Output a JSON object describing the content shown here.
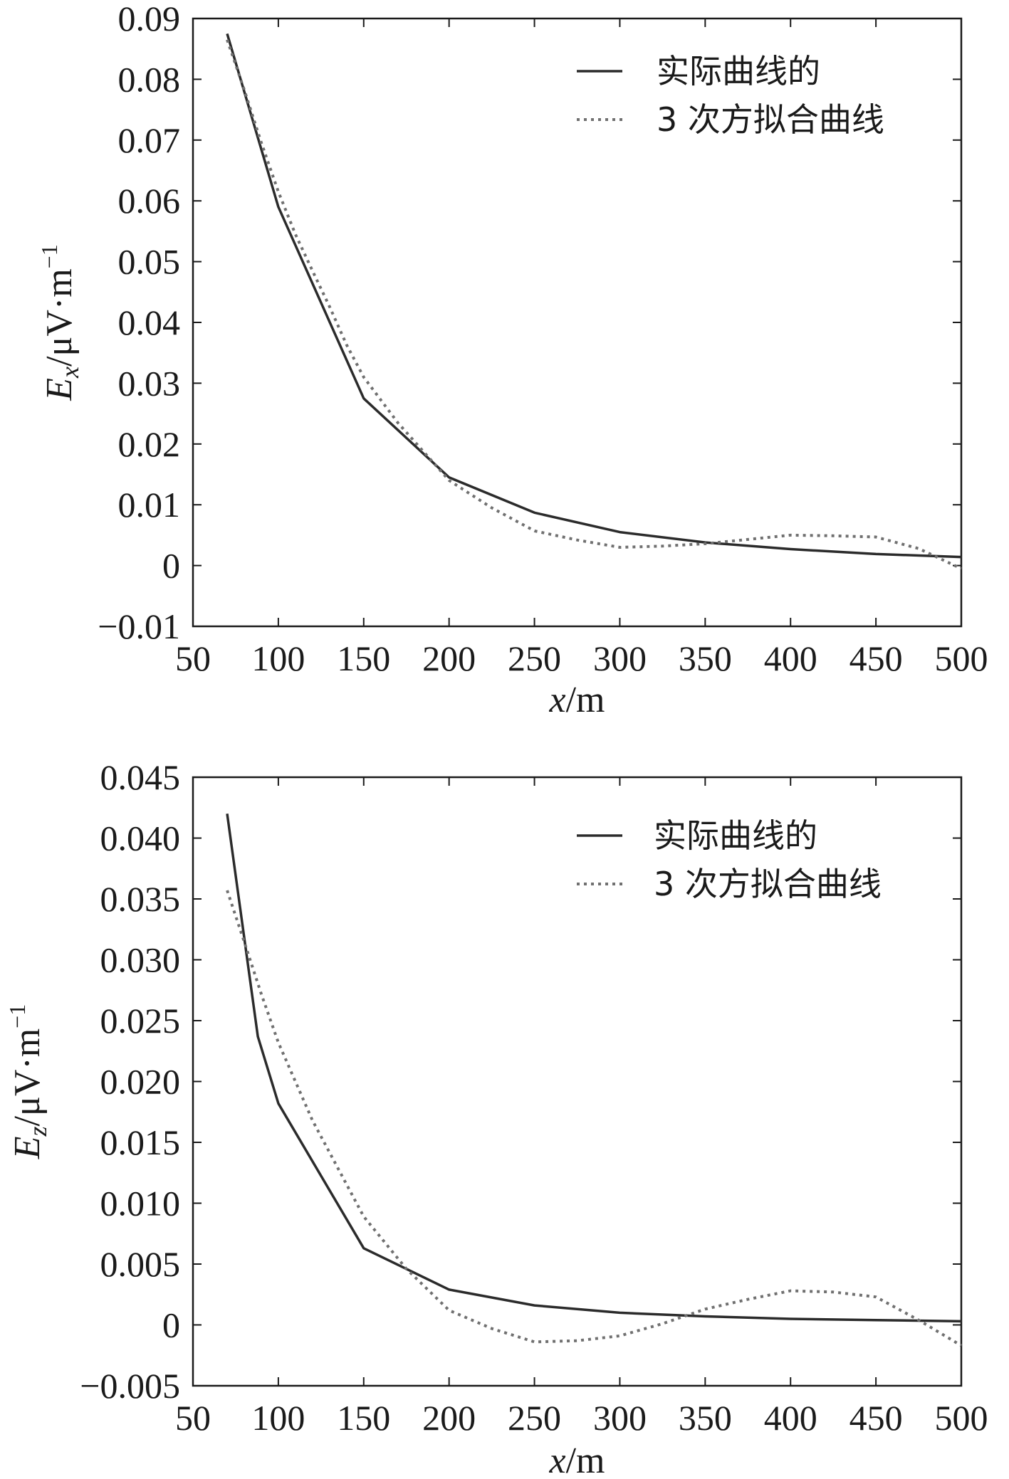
{
  "chart_data": [
    {
      "type": "line",
      "xlabel": {
        "var": "x",
        "unit": "/m"
      },
      "ylabel": {
        "var": "E",
        "sub": "x",
        "unit": "/μV·m",
        "sup": "−1"
      },
      "xlim": [
        50,
        500
      ],
      "ylim": [
        -0.01,
        0.09
      ],
      "xticks": [
        50,
        100,
        150,
        200,
        250,
        300,
        350,
        400,
        450,
        500
      ],
      "xtick_labels": [
        "50",
        "100",
        "150",
        "200",
        "250",
        "300",
        "350",
        "400",
        "450",
        "500"
      ],
      "yticks": [
        -0.01,
        0,
        0.01,
        0.02,
        0.03,
        0.04,
        0.05,
        0.06,
        0.07,
        0.08,
        0.09
      ],
      "ytick_labels": [
        "−0.01",
        "0",
        "0.01",
        "0.02",
        "0.03",
        "0.04",
        "0.05",
        "0.06",
        "0.07",
        "0.08",
        "0.09"
      ],
      "legend_position": "top-right",
      "grid": false,
      "series": [
        {
          "name": "实际曲线的",
          "style": "solid",
          "color": "#2b2b2b",
          "x": [
            70,
            100,
            150,
            200,
            250,
            300,
            350,
            400,
            450,
            500
          ],
          "values": [
            0.0875,
            0.059,
            0.0275,
            0.0145,
            0.0087,
            0.0055,
            0.0038,
            0.0027,
            0.0019,
            0.0014
          ]
        },
        {
          "name": "3 次方拟合曲线",
          "style": "dotted",
          "color": "#707070",
          "x": [
            70,
            80,
            90,
            100,
            110,
            120,
            130,
            140,
            150,
            170,
            200,
            225,
            250,
            275,
            300,
            325,
            350,
            375,
            400,
            425,
            450,
            475,
            500
          ],
          "values": [
            0.0865,
            0.0783,
            0.0696,
            0.0615,
            0.0545,
            0.0485,
            0.0426,
            0.0363,
            0.031,
            0.0235,
            0.014,
            0.0095,
            0.0057,
            0.0042,
            0.003,
            0.0032,
            0.0036,
            0.0043,
            0.005,
            0.0049,
            0.0047,
            0.0028,
            -0.0005
          ]
        }
      ]
    },
    {
      "type": "line",
      "xlabel": {
        "var": "x",
        "unit": "/m"
      },
      "ylabel": {
        "var": "E",
        "sub": "z",
        "unit": "/μV·m",
        "sup": "−1"
      },
      "xlim": [
        50,
        500
      ],
      "ylim": [
        -0.005,
        0.045
      ],
      "xticks": [
        50,
        100,
        150,
        200,
        250,
        300,
        350,
        400,
        450,
        500
      ],
      "xtick_labels": [
        "50",
        "100",
        "150",
        "200",
        "250",
        "300",
        "350",
        "400",
        "450",
        "500"
      ],
      "yticks": [
        -0.005,
        0,
        0.005,
        0.01,
        0.015,
        0.02,
        0.025,
        0.03,
        0.035,
        0.04,
        0.045
      ],
      "ytick_labels": [
        "−0.005",
        "0",
        "0.005",
        "0.010",
        "0.015",
        "0.020",
        "0.025",
        "0.030",
        "0.035",
        "0.040",
        "0.045"
      ],
      "legend_position": "top-right",
      "grid": false,
      "series": [
        {
          "name": "实际曲线的",
          "style": "solid",
          "color": "#2b2b2b",
          "x": [
            70,
            88,
            100,
            150,
            200,
            250,
            300,
            350,
            400,
            450,
            500
          ],
          "values": [
            0.042,
            0.0237,
            0.0182,
            0.0063,
            0.0029,
            0.0016,
            0.001,
            0.0007,
            0.0005,
            0.0004,
            0.0003
          ]
        },
        {
          "name": "3 次方拟合曲线",
          "style": "dotted",
          "color": "#707070",
          "x": [
            70,
            80,
            90,
            100,
            120,
            150,
            175,
            200,
            225,
            250,
            275,
            300,
            325,
            350,
            375,
            400,
            425,
            450,
            475,
            500
          ],
          "values": [
            0.0357,
            0.0315,
            0.0272,
            0.0232,
            0.0168,
            0.0089,
            0.0046,
            0.0012,
            -0.0003,
            -0.0014,
            -0.0013,
            -0.0009,
            0.0001,
            0.0013,
            0.0021,
            0.0028,
            0.0027,
            0.0023,
            0.0004,
            -0.0017
          ]
        }
      ]
    }
  ]
}
